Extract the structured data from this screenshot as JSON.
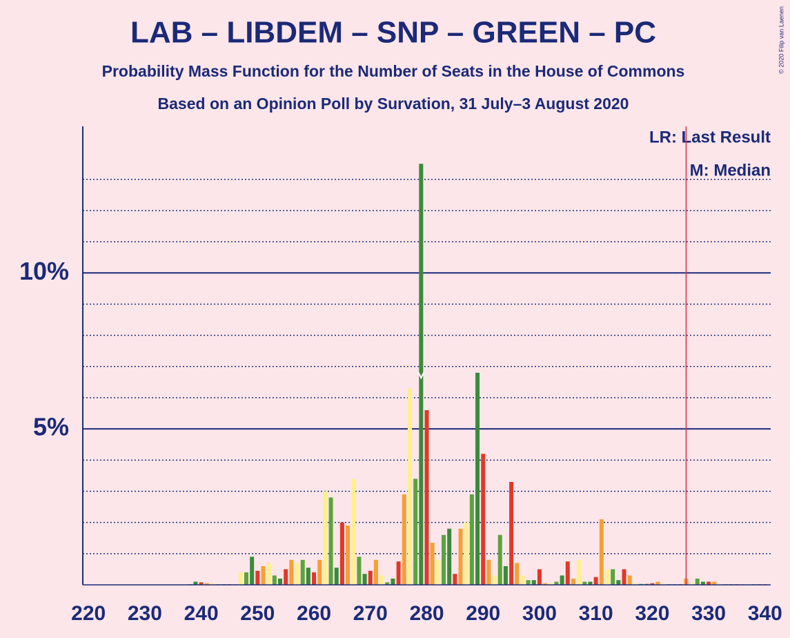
{
  "chart_data": {
    "type": "bar",
    "title": "LAB – LIBDEM – SNP – GREEN – PC",
    "subtitle": "Probability Mass Function for the Number of Seats in the House of Commons",
    "subtitle2": "Based on an Opinion Poll by Survation, 31 July–3 August 2020",
    "legend": [
      "LR: Last Result",
      "M: Median"
    ],
    "credit": "© 2020 Filip van Laenen",
    "x": [
      220,
      221,
      222,
      223,
      224,
      225,
      226,
      227,
      228,
      229,
      230,
      231,
      232,
      233,
      234,
      235,
      236,
      237,
      238,
      239,
      240,
      241,
      242,
      243,
      244,
      245,
      246,
      247,
      248,
      249,
      250,
      251,
      252,
      253,
      254,
      255,
      256,
      257,
      258,
      259,
      260,
      261,
      262,
      263,
      264,
      265,
      266,
      267,
      268,
      269,
      270,
      271,
      272,
      273,
      274,
      275,
      276,
      277,
      278,
      279,
      280,
      281,
      282,
      283,
      284,
      285,
      286,
      287,
      288,
      289,
      290,
      291,
      292,
      293,
      294,
      295,
      296,
      297,
      298,
      299,
      300,
      301,
      302,
      303,
      304,
      305,
      306,
      307,
      308,
      309,
      310,
      311,
      312,
      313,
      314,
      315,
      316,
      317,
      318,
      319,
      320,
      321,
      322,
      323,
      324,
      325,
      326,
      327,
      328,
      329,
      330,
      331,
      332,
      333,
      334,
      335,
      336,
      337,
      338,
      339,
      340
    ],
    "values": [
      0,
      0,
      0,
      0,
      0,
      0,
      0,
      0,
      0,
      0,
      0,
      0,
      0,
      0,
      0,
      0,
      0,
      0,
      0.02,
      0.1,
      0.08,
      0.05,
      0.05,
      0.02,
      0.02,
      0.02,
      0.02,
      0.4,
      0.4,
      0.9,
      0.45,
      0.6,
      0.7,
      0.3,
      0.2,
      0.5,
      0.8,
      0.7,
      0.8,
      0.55,
      0.4,
      0.8,
      3.0,
      2.8,
      0.55,
      2.0,
      1.9,
      3.4,
      0.9,
      0.35,
      0.45,
      0.8,
      0.3,
      0.08,
      0.2,
      0.75,
      2.9,
      6.3,
      3.4,
      13.5,
      5.6,
      1.35,
      0.8,
      1.6,
      1.8,
      0.35,
      1.8,
      2.0,
      2.9,
      6.8,
      4.2,
      0.8,
      0.3,
      1.6,
      0.6,
      3.3,
      0.7,
      0.3,
      0.15,
      0.15,
      0.5,
      0.05,
      0.05,
      0.1,
      0.3,
      0.75,
      0.2,
      0.8,
      0.1,
      0.1,
      0.25,
      2.1,
      0.5,
      0.5,
      0.15,
      0.5,
      0.3,
      0.05,
      0.03,
      0.03,
      0.05,
      0.1,
      0.03,
      0.02,
      0.02,
      0.02,
      0.2,
      0.05,
      0.2,
      0.1,
      0.1,
      0.1,
      0.03,
      0.02,
      0.02,
      0.02,
      0.02,
      0.02,
      0.02,
      0.02,
      0.02
    ],
    "palette": [
      "#e1382a",
      "#f5a033",
      "#fff08c",
      "#5aa43c",
      "#3b8a3b"
    ],
    "xlim": [
      219,
      341
    ],
    "xticks": [
      220,
      230,
      240,
      250,
      260,
      270,
      280,
      290,
      300,
      310,
      320,
      330,
      340
    ],
    "ylim": [
      0,
      14.7
    ],
    "yticks": [
      {
        "value": 5,
        "label": "5%"
      },
      {
        "value": 10,
        "label": "10%"
      }
    ],
    "minor_yticks": [
      1,
      2,
      3,
      4,
      6,
      7,
      8,
      9,
      11,
      12,
      13
    ],
    "last_result": 326,
    "median": 279
  }
}
